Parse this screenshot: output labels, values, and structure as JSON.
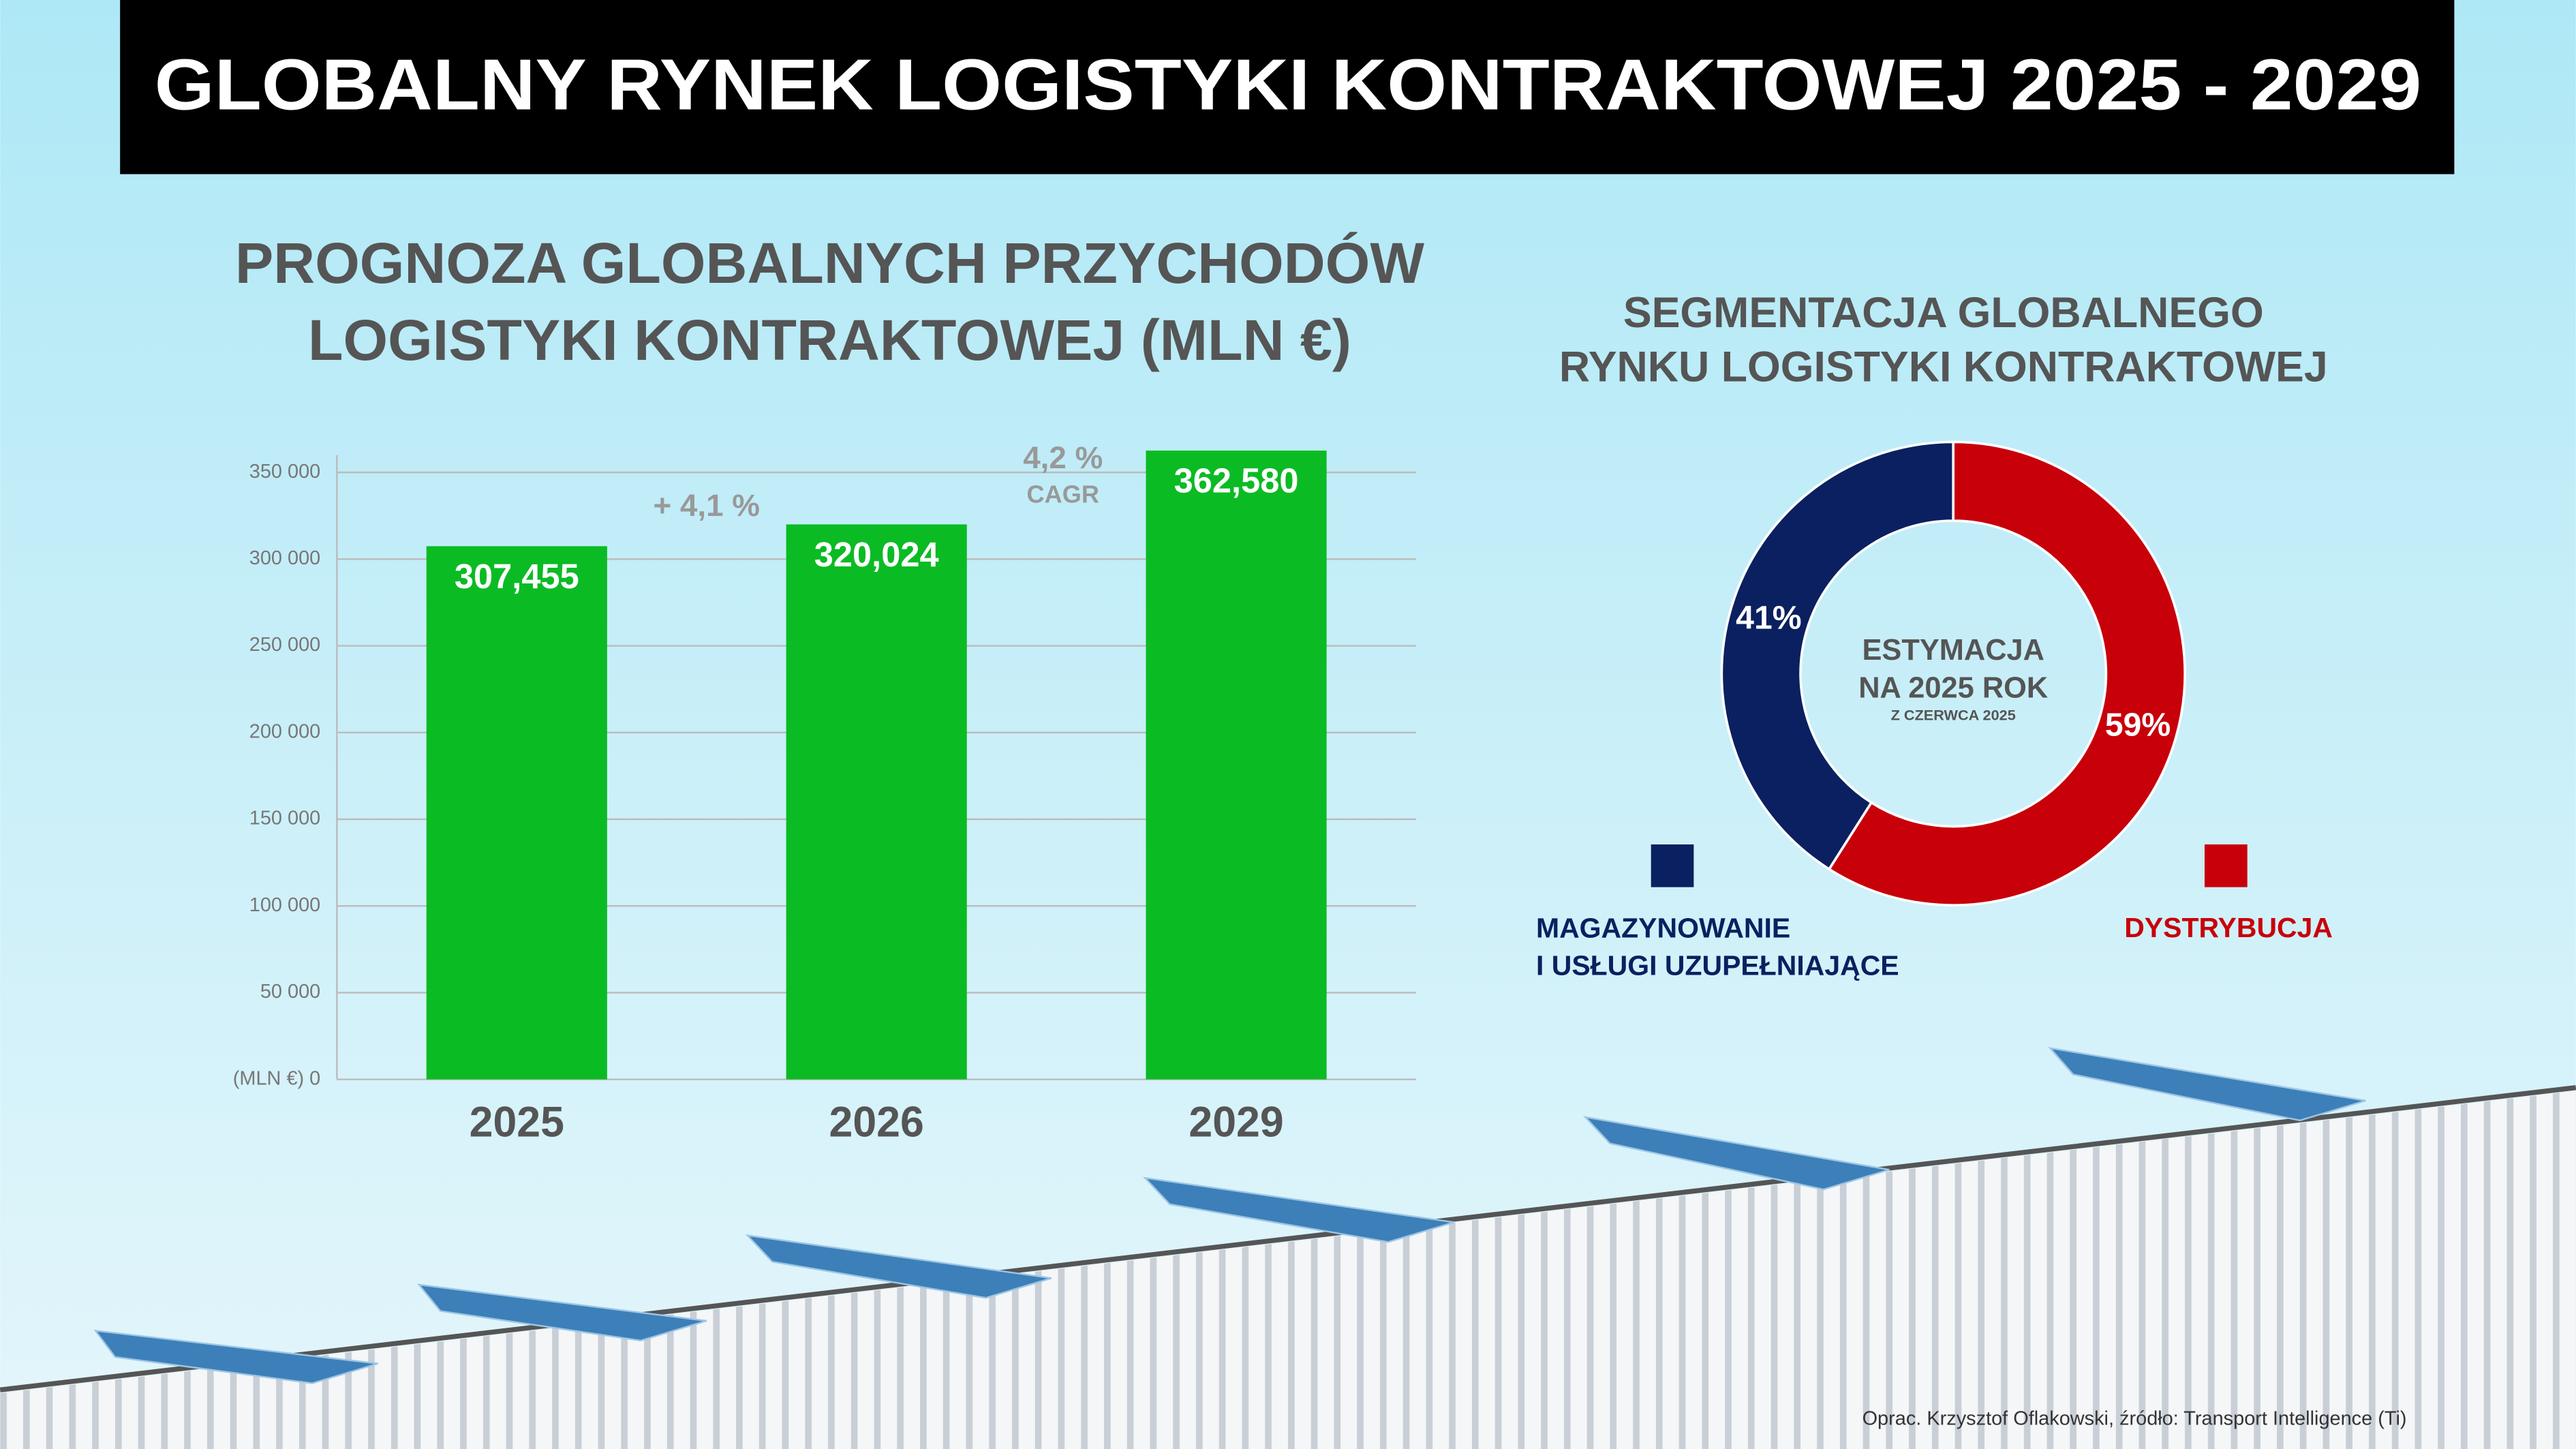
{
  "title": "GLOBALNY RYNEK LOGISTYKI KONTRAKTOWEJ 2025 - 2029",
  "source": "Oprac. Krzysztof Oflakowski, źródło: Transport Intelligence (Ti)",
  "chart_data": [
    {
      "type": "bar",
      "title": "PROGNOZA GLOBALNYCH PRZYCHODÓW LOGISTYKI KONTRAKTOWEJ (MLN €)",
      "categories": [
        "2025",
        "2026",
        "2029"
      ],
      "values": [
        307455,
        320024,
        362580
      ],
      "value_labels": [
        "307,455",
        "320,024",
        "362,580"
      ],
      "color": "#0bbb24",
      "ylim": [
        0,
        360000
      ],
      "yticks": [
        {
          "value": 0,
          "label": "(MLN €) 0"
        },
        {
          "value": 50000,
          "label": "50 000"
        },
        {
          "value": 100000,
          "label": "100 000"
        },
        {
          "value": 150000,
          "label": "150 000"
        },
        {
          "value": 200000,
          "label": "200 000"
        },
        {
          "value": 250000,
          "label": "250 000"
        },
        {
          "value": 300000,
          "label": "300 000"
        },
        {
          "value": 350000,
          "label": "350 000"
        }
      ],
      "grid": true,
      "annotations": [
        "+ 4,1 %",
        "4,2 %",
        "CAGR"
      ]
    },
    {
      "type": "pie",
      "title": "SEGMENTACJA GLOBALNEGO RYNKU LOGISTYKI KONTRAKTOWEJ",
      "categories": [
        "MAGAZYNOWANIE I USŁUGI UZUPEŁNIAJĄCE",
        "DYSTRYBUCJA"
      ],
      "values": [
        41,
        59
      ],
      "value_labels": [
        "41%",
        "59%"
      ],
      "colors": [
        "#0a2060",
        "#c8000a"
      ],
      "center_text": "ESTYMACJA NA 2025 ROK",
      "center_subtext": "Z CZERWCA 2025"
    }
  ]
}
